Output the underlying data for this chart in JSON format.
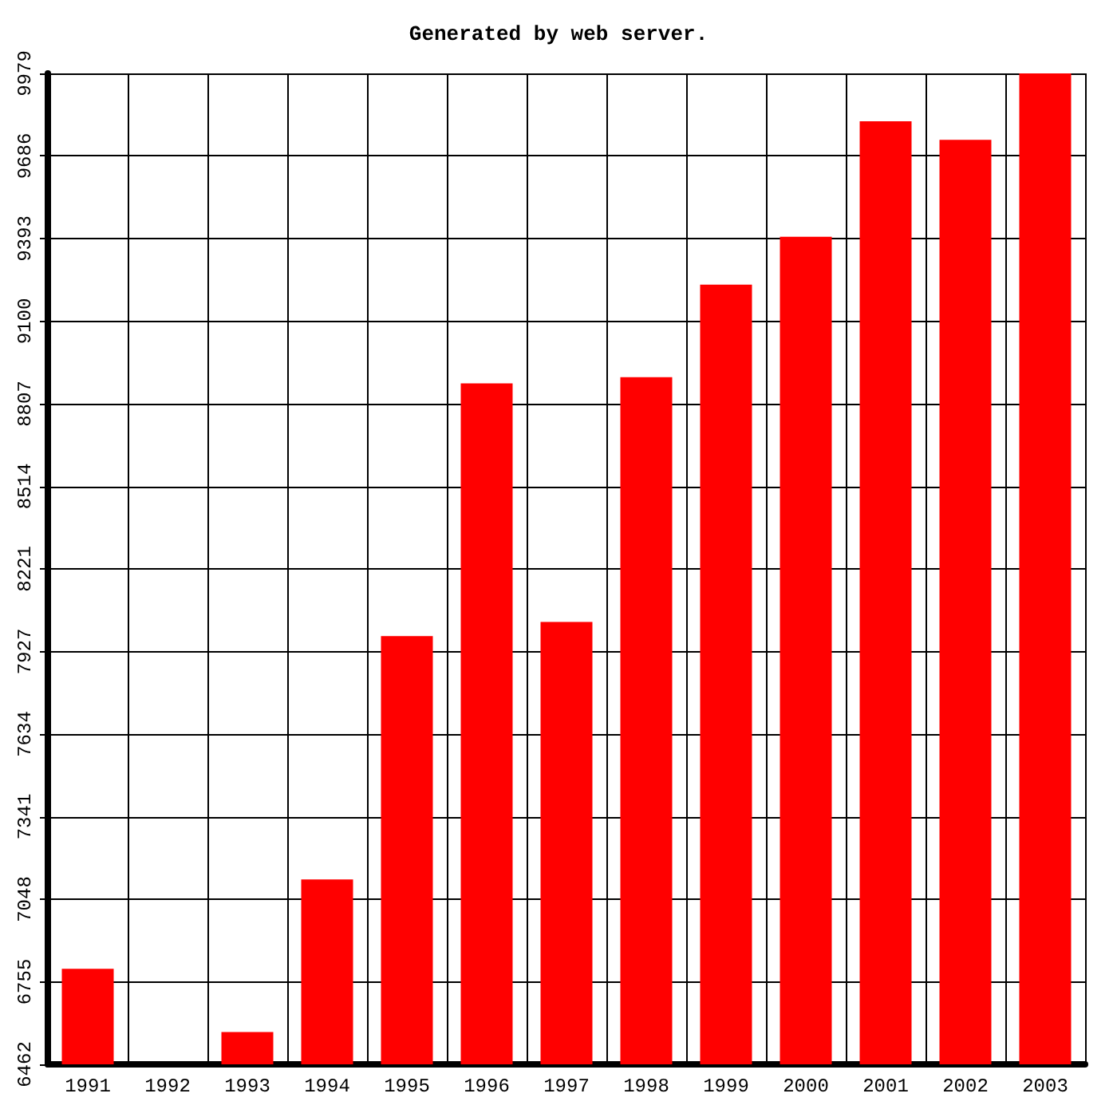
{
  "chart_data": {
    "type": "bar",
    "title": "Generated by web server.",
    "categories": [
      "1991",
      "1992",
      "1993",
      "1994",
      "1995",
      "1996",
      "1997",
      "1998",
      "1999",
      "2000",
      "2001",
      "2002",
      "2003"
    ],
    "values": [
      6801,
      null,
      6577,
      7118,
      7982,
      8879,
      8032,
      8901,
      9229,
      9399,
      9809,
      9743,
      9979
    ],
    "color": "#ff0000",
    "ylim": [
      6462,
      9979
    ],
    "yticks": [
      6462,
      {
        "value": 6755.08,
        "label": "6755"
      },
      {
        "value": 7048.17,
        "label": "7048"
      },
      {
        "value": 7341.25,
        "label": "7341"
      },
      {
        "value": 7634.33,
        "label": "7634"
      },
      {
        "value": 7927.42,
        "label": "7927"
      },
      {
        "value": 8220.5,
        "label": "8221"
      },
      {
        "value": 8513.58,
        "label": "8514"
      },
      {
        "value": 8806.67,
        "label": "8807"
      },
      {
        "value": 9099.75,
        "label": "9100"
      },
      {
        "value": 9392.83,
        "label": "9393"
      },
      {
        "value": 9685.92,
        "label": "9686"
      },
      9979
    ],
    "grid": true
  }
}
